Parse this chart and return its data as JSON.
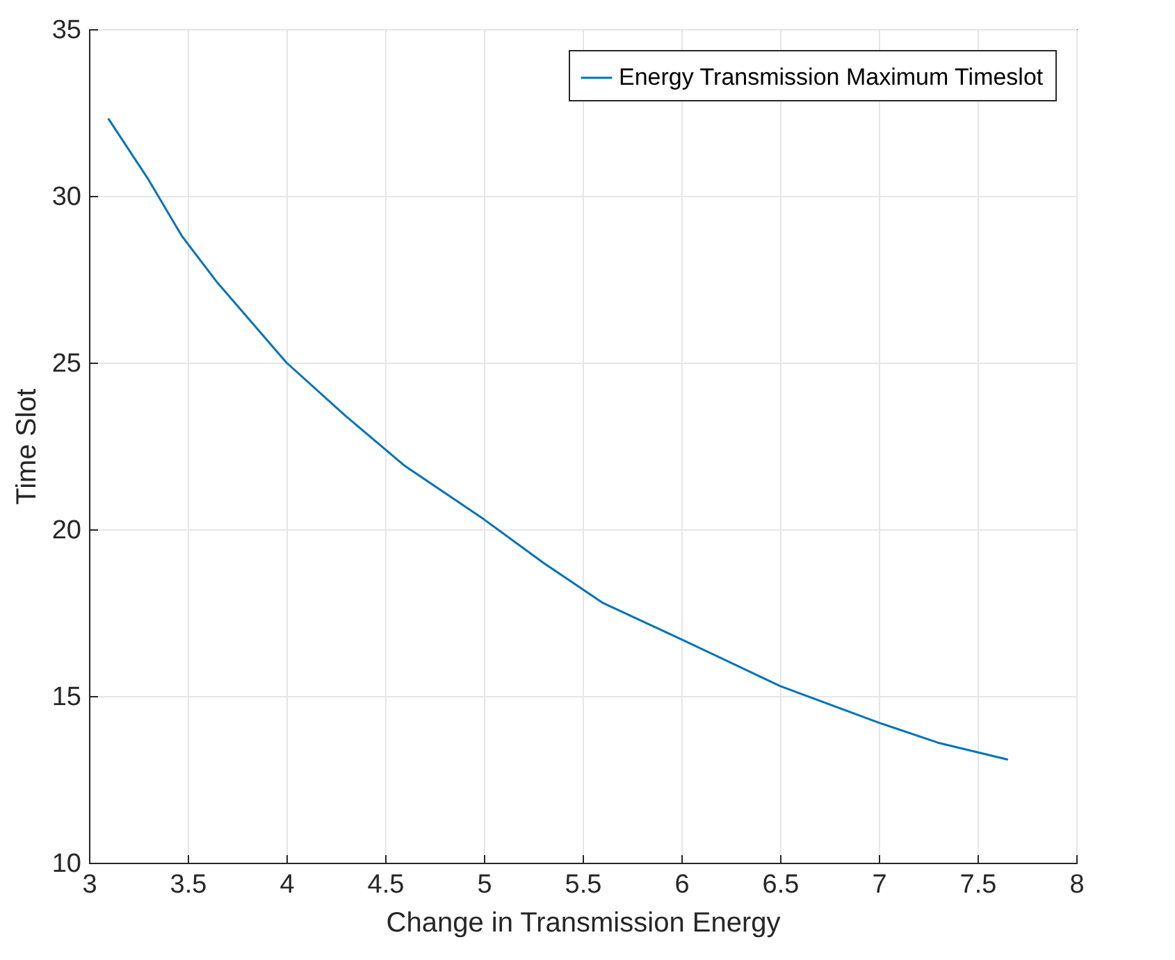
{
  "chart_data": {
    "type": "line",
    "xlabel": "Change in Transmission Energy",
    "ylabel": "Time Slot",
    "x": [
      3.1,
      3.3,
      3.47,
      3.65,
      4.0,
      4.3,
      4.6,
      5.0,
      5.3,
      5.6,
      6.0,
      6.5,
      7.0,
      7.3,
      7.65
    ],
    "series": [
      {
        "name": "Energy Transmission Maximum Timeslot",
        "color": "#0072bd",
        "values": [
          32.3,
          30.5,
          28.8,
          27.4,
          25.0,
          23.4,
          21.9,
          20.3,
          19.0,
          17.8,
          16.7,
          15.3,
          14.2,
          13.6,
          13.1
        ]
      }
    ],
    "xlim": [
      3,
      8
    ],
    "xticks": [
      3,
      3.5,
      4,
      4.5,
      5,
      5.5,
      6,
      6.5,
      7,
      7.5,
      8
    ],
    "ylim": [
      10,
      35
    ],
    "yticks": [
      10,
      15,
      20,
      25,
      30,
      35
    ],
    "grid": true,
    "legend": "top right",
    "marker": "none",
    "line_style": "solid"
  }
}
